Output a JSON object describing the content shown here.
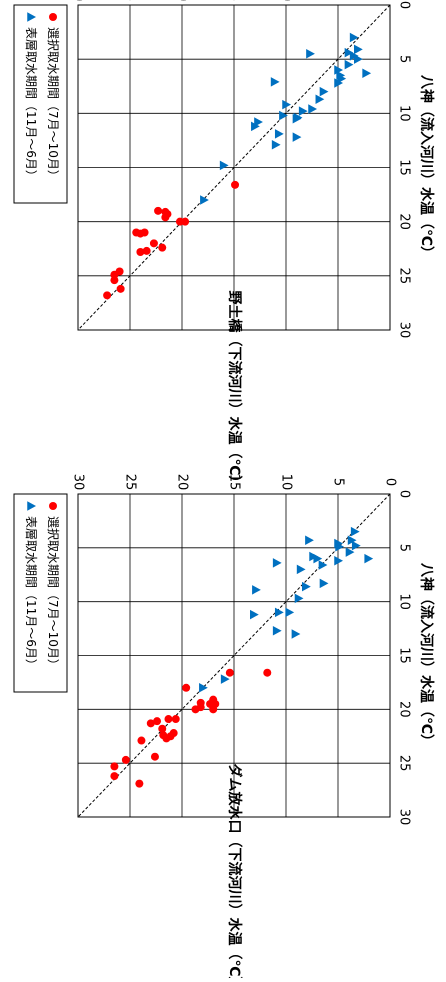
{
  "chart_data": [
    {
      "type": "scatter",
      "xlabel": "八神（流入河川）水温（℃）",
      "ylabel": "ダム放水口（下流河川）水温（℃）",
      "xlim": [
        0,
        30
      ],
      "ylim": [
        0,
        30
      ],
      "ticks": [
        0,
        5,
        10,
        15,
        20,
        25,
        30
      ],
      "grid": true,
      "legend_position": "top-left",
      "reference_line": "1:1",
      "series": [
        {
          "name": "選択取水期間（7月～10月）",
          "marker": "circle",
          "color": "#ff0000",
          "points": [
            [
              26.9,
              24.1
            ],
            [
              26.2,
              26.5
            ],
            [
              25.3,
              26.5
            ],
            [
              24.7,
              25.4
            ],
            [
              24.4,
              22.6
            ],
            [
              22.9,
              23.9
            ],
            [
              22.7,
              21.5
            ],
            [
              22.5,
              21.1
            ],
            [
              22.2,
              20.8
            ],
            [
              22.4,
              21.8
            ],
            [
              21.8,
              21.9
            ],
            [
              21.3,
              23.0
            ],
            [
              21.1,
              22.4
            ],
            [
              20.9,
              21.3
            ],
            [
              20.9,
              20.6
            ],
            [
              20.0,
              18.7
            ],
            [
              19.8,
              18.2
            ],
            [
              19.4,
              18.2
            ],
            [
              19.5,
              17.3
            ],
            [
              19.1,
              17.0
            ],
            [
              19.5,
              16.8
            ],
            [
              20.0,
              17.0
            ],
            [
              18.0,
              19.6
            ],
            [
              16.6,
              15.4
            ],
            [
              16.6,
              11.8
            ]
          ]
        },
        {
          "name": "表層取水期間（11月～6月）",
          "marker": "triangle",
          "color": "#0070c0",
          "points": [
            [
              18.0,
              18.0
            ],
            [
              17.2,
              15.9
            ],
            [
              13.0,
              9.1
            ],
            [
              12.7,
              10.9
            ],
            [
              11.2,
              13.1
            ],
            [
              11.0,
              10.7
            ],
            [
              11.0,
              9.7
            ],
            [
              9.7,
              8.8
            ],
            [
              8.9,
              12.9
            ],
            [
              8.6,
              8.1
            ],
            [
              8.3,
              6.4
            ],
            [
              7.0,
              8.6
            ],
            [
              6.4,
              10.9
            ],
            [
              6.6,
              6.5
            ],
            [
              6.2,
              5.0
            ],
            [
              6.0,
              7.0
            ],
            [
              5.8,
              7.4
            ],
            [
              6.0,
              2.1
            ],
            [
              5.4,
              3.9
            ],
            [
              4.9,
              4.9
            ],
            [
              4.6,
              5.0
            ],
            [
              4.8,
              3.3
            ],
            [
              4.3,
              3.7
            ],
            [
              4.3,
              7.8
            ],
            [
              3.5,
              3.4
            ]
          ]
        }
      ]
    },
    {
      "type": "scatter",
      "xlabel": "八神（流入河川）水温（℃）",
      "ylabel": "野土橋（下流河川）水温（℃）",
      "xlim": [
        0,
        30
      ],
      "ylim": [
        0,
        30
      ],
      "ticks": [
        0,
        5,
        10,
        15,
        20,
        25,
        30
      ],
      "grid": true,
      "legend_position": "top-left",
      "reference_line": "1:1",
      "series": [
        {
          "name": "選択取水期間（7月～10月）",
          "marker": "circle",
          "color": "#ff0000",
          "points": [
            [
              26.8,
              27.2
            ],
            [
              26.2,
              25.9
            ],
            [
              25.4,
              26.5
            ],
            [
              24.9,
              26.5
            ],
            [
              24.6,
              26.0
            ],
            [
              22.7,
              23.4
            ],
            [
              22.8,
              24.0
            ],
            [
              22.4,
              21.9
            ],
            [
              22.0,
              22.7
            ],
            [
              21.1,
              24.0
            ],
            [
              21.0,
              24.4
            ],
            [
              21.0,
              23.6
            ],
            [
              20.0,
              20.2
            ],
            [
              20.0,
              19.7
            ],
            [
              19.6,
              21.6
            ],
            [
              19.3,
              21.4
            ],
            [
              19.1,
              21.6
            ],
            [
              19.0,
              22.3
            ],
            [
              16.6,
              14.9
            ]
          ]
        },
        {
          "name": "表層取水期間（11月～6月）",
          "marker": "triangle",
          "color": "#0070c0",
          "points": [
            [
              18.0,
              17.9
            ],
            [
              14.8,
              16.0
            ],
            [
              12.9,
              11.0
            ],
            [
              12.2,
              9.0
            ],
            [
              11.9,
              10.7
            ],
            [
              11.2,
              13.0
            ],
            [
              10.8,
              12.7
            ],
            [
              10.5,
              9.0
            ],
            [
              10.4,
              8.9
            ],
            [
              10.2,
              10.3
            ],
            [
              9.8,
              8.4
            ],
            [
              9.6,
              7.5
            ],
            [
              9.2,
              10.0
            ],
            [
              8.7,
              6.8
            ],
            [
              8.0,
              6.4
            ],
            [
              7.1,
              11.1
            ],
            [
              7.2,
              5.0
            ],
            [
              6.8,
              4.7
            ],
            [
              6.5,
              4.8
            ],
            [
              6.0,
              5.0
            ],
            [
              6.3,
              2.3
            ],
            [
              5.5,
              4.0
            ],
            [
              5.0,
              3.1
            ],
            [
              4.7,
              3.5
            ],
            [
              4.5,
              7.7
            ],
            [
              4.4,
              4.0
            ],
            [
              4.1,
              3.1
            ],
            [
              3.0,
              3.5
            ]
          ]
        }
      ]
    }
  ]
}
